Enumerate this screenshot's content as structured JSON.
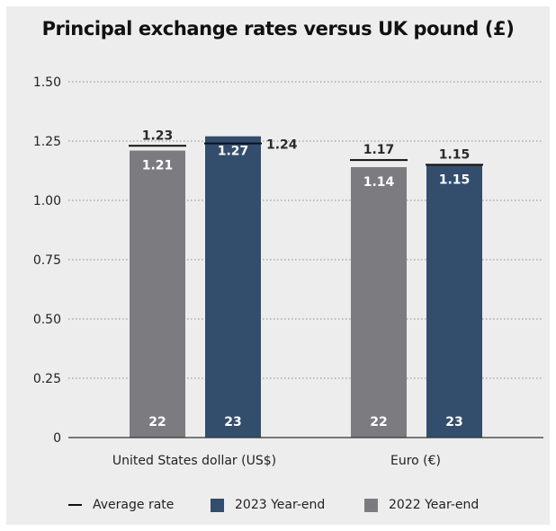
{
  "chart_data": {
    "type": "bar",
    "title": "Principal exchange rates versus UK pound (£)",
    "categories": [
      "United States dollar (US$)",
      "Euro (€)"
    ],
    "series": [
      {
        "name": "2022 Year-end",
        "label": "22",
        "color": "#7c7c80",
        "values": [
          1.21,
          1.14
        ]
      },
      {
        "name": "2023 Year-end",
        "label": "23",
        "color": "#334d6d",
        "values": [
          1.27,
          1.15
        ]
      }
    ],
    "average_rate": {
      "name": "Average rate",
      "values": [
        [
          1.23,
          1.24
        ],
        [
          1.17,
          1.15
        ]
      ]
    },
    "value_labels": [
      [
        "1.21",
        "1.27"
      ],
      [
        "1.14",
        "1.15"
      ]
    ],
    "average_labels": [
      [
        "1.23",
        "1.24"
      ],
      [
        "1.17",
        "1.15"
      ]
    ],
    "yticks": [
      "0",
      "0.25",
      "0.50",
      "0.75",
      "1.00",
      "1.25",
      "1.50"
    ],
    "ytick_values": [
      0,
      0.25,
      0.5,
      0.75,
      1.0,
      1.25,
      1.5
    ],
    "ylim": [
      0,
      1.5
    ],
    "grid": true,
    "legend_position": "bottom"
  }
}
